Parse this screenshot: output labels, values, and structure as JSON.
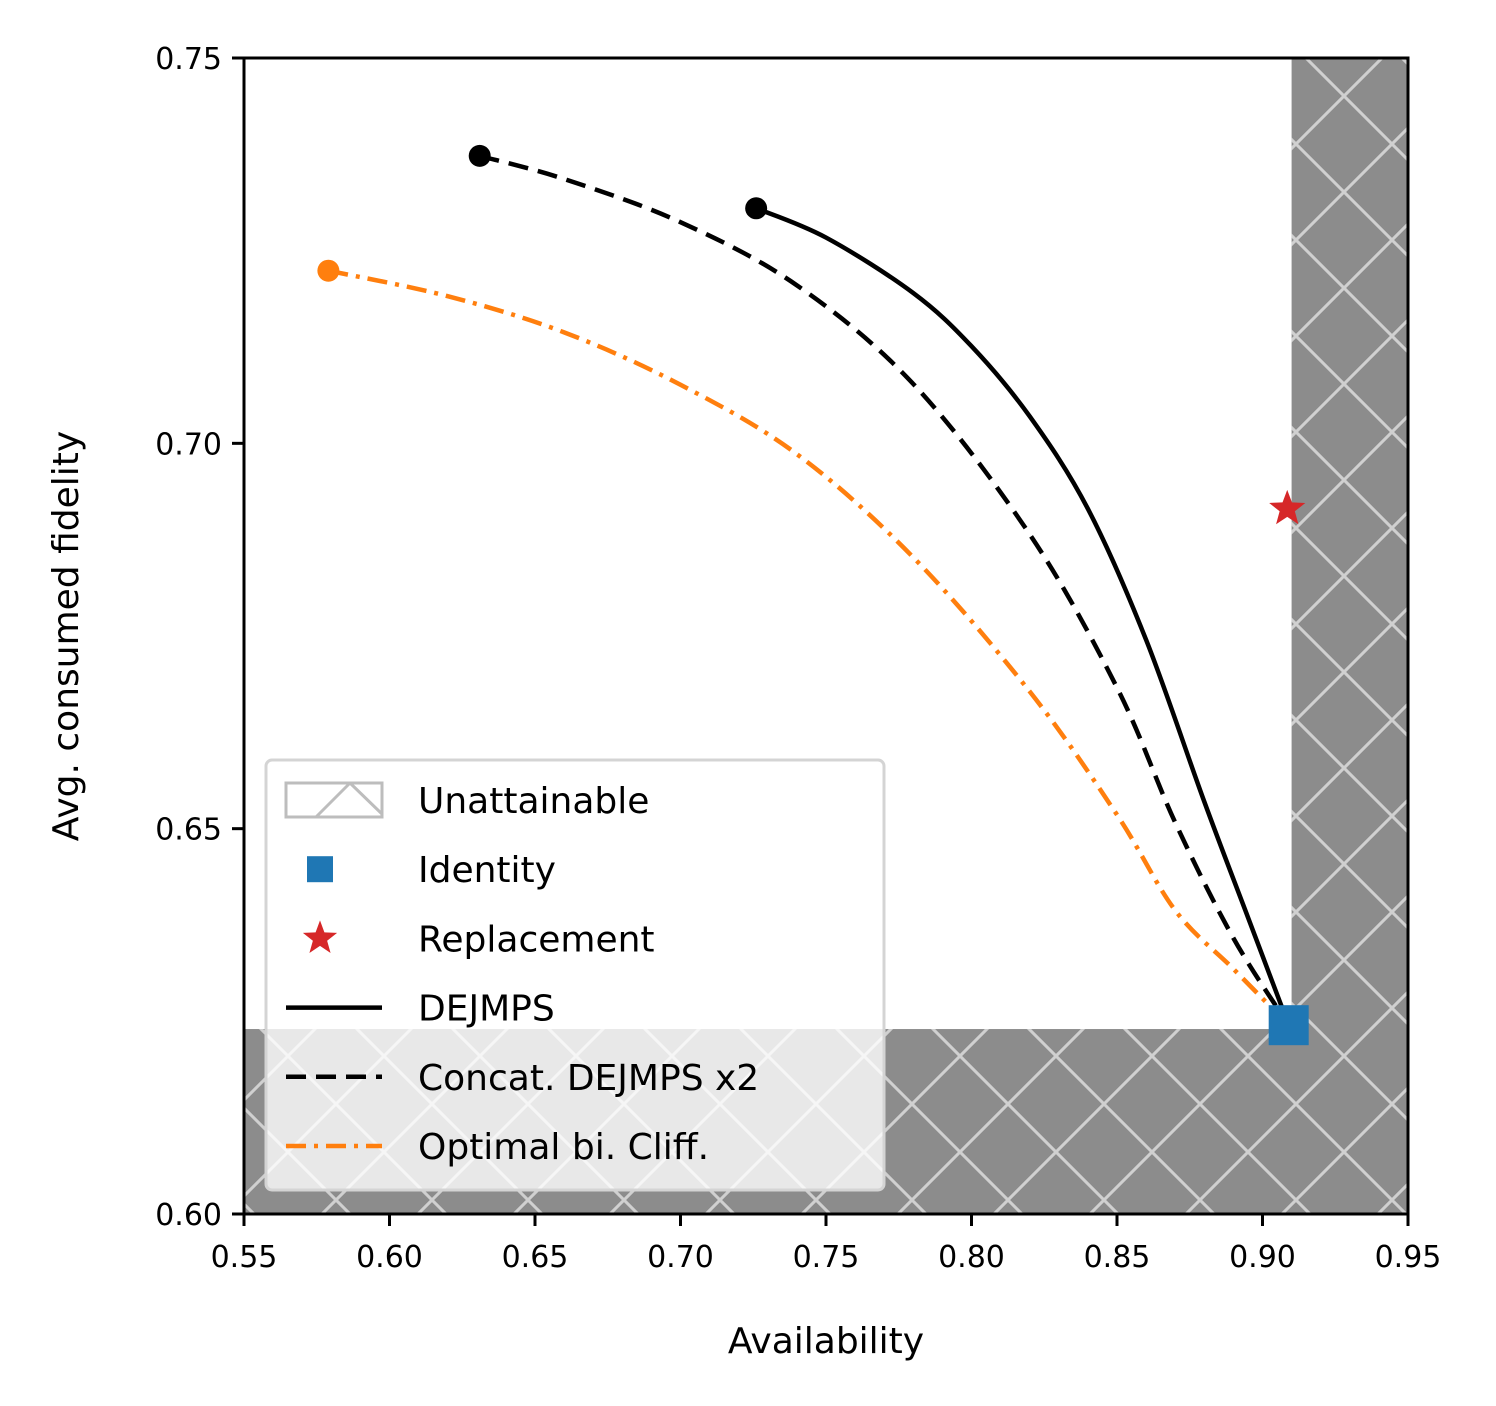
{
  "chart_data": {
    "type": "line",
    "xlabel": "Availability",
    "ylabel": "Avg. consumed fidelity",
    "xlim": [
      0.55,
      0.95
    ],
    "ylim": [
      0.6,
      0.75
    ],
    "xticks": [
      "0.55",
      "0.60",
      "0.65",
      "0.70",
      "0.75",
      "0.80",
      "0.85",
      "0.90",
      "0.95"
    ],
    "yticks": [
      "0.60",
      "0.65",
      "0.70",
      "0.75"
    ],
    "grid": false,
    "legend_position": "lower-left",
    "unattainable_regions": {
      "availability_min": 0.91,
      "fidelity_max": 0.624,
      "fill_color": "#8c8c8c",
      "hatch_color": "#d0d0d0"
    },
    "series": [
      {
        "name": "DEJMPS",
        "kind": "line",
        "style": "solid",
        "color": "#000000",
        "points": [
          [
            0.726,
            0.7305
          ],
          [
            0.75,
            0.7267
          ],
          [
            0.78,
            0.7195
          ],
          [
            0.8,
            0.7126
          ],
          [
            0.82,
            0.7035
          ],
          [
            0.84,
            0.6915
          ],
          [
            0.86,
            0.6745
          ],
          [
            0.88,
            0.6535
          ],
          [
            0.895,
            0.6385
          ],
          [
            0.909,
            0.6245
          ]
        ]
      },
      {
        "name": "Concat. DEJMPS x2",
        "kind": "line",
        "style": "dashed",
        "color": "#000000",
        "points": [
          [
            0.631,
            0.7373
          ],
          [
            0.66,
            0.7343
          ],
          [
            0.7,
            0.7287
          ],
          [
            0.74,
            0.7205
          ],
          [
            0.78,
            0.7077
          ],
          [
            0.82,
            0.6882
          ],
          [
            0.85,
            0.6683
          ],
          [
            0.87,
            0.6508
          ],
          [
            0.89,
            0.6358
          ],
          [
            0.909,
            0.6245
          ]
        ]
      },
      {
        "name": "Optimal bi. Cliff.",
        "kind": "line",
        "style": "dashdot",
        "color": "#ff7f0e",
        "points": [
          [
            0.579,
            0.7224
          ],
          [
            0.62,
            0.7191
          ],
          [
            0.66,
            0.7144
          ],
          [
            0.7,
            0.7076
          ],
          [
            0.74,
            0.6986
          ],
          [
            0.78,
            0.6852
          ],
          [
            0.82,
            0.6678
          ],
          [
            0.85,
            0.6518
          ],
          [
            0.87,
            0.6394
          ],
          [
            0.89,
            0.6318
          ],
          [
            0.909,
            0.6245
          ]
        ]
      },
      {
        "name": "Identity",
        "kind": "marker",
        "marker": "square",
        "color": "#1f77b4",
        "points": [
          [
            0.909,
            0.6245
          ]
        ]
      },
      {
        "name": "Replacement",
        "kind": "marker",
        "marker": "star",
        "color": "#d62728",
        "points": [
          [
            0.9085,
            0.6915
          ]
        ]
      }
    ],
    "legend": [
      {
        "label": "Unattainable",
        "key": "hatch"
      },
      {
        "label": "Identity",
        "key": "Identity"
      },
      {
        "label": "Replacement",
        "key": "Replacement"
      },
      {
        "label": "DEJMPS",
        "key": "DEJMPS"
      },
      {
        "label": "Concat. DEJMPS x2",
        "key": "Concat. DEJMPS x2"
      },
      {
        "label": "Optimal bi. Cliff.",
        "key": "Optimal bi. Cliff."
      }
    ]
  }
}
